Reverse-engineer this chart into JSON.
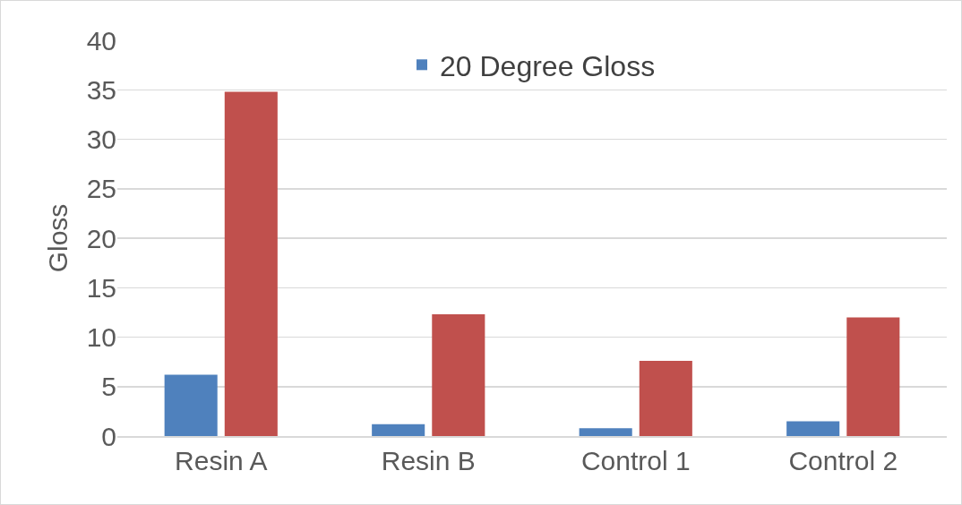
{
  "chart_data": {
    "type": "bar",
    "ylabel": "Gloss",
    "categories": [
      "Resin A",
      "Resin B",
      "Control 1",
      "Control 2"
    ],
    "series": [
      {
        "name": "20 Degree Gloss",
        "color": "#4f81bd",
        "values": [
          6.2,
          1.2,
          0.8,
          1.5
        ]
      },
      {
        "color": "#c0504d",
        "values": [
          34.8,
          12.3,
          7.6,
          12.0
        ]
      }
    ],
    "ylim": [
      0,
      40
    ],
    "yticks": [
      0,
      5,
      10,
      15,
      20,
      25,
      30,
      35,
      40
    ],
    "grid": "y",
    "legend": "top"
  }
}
